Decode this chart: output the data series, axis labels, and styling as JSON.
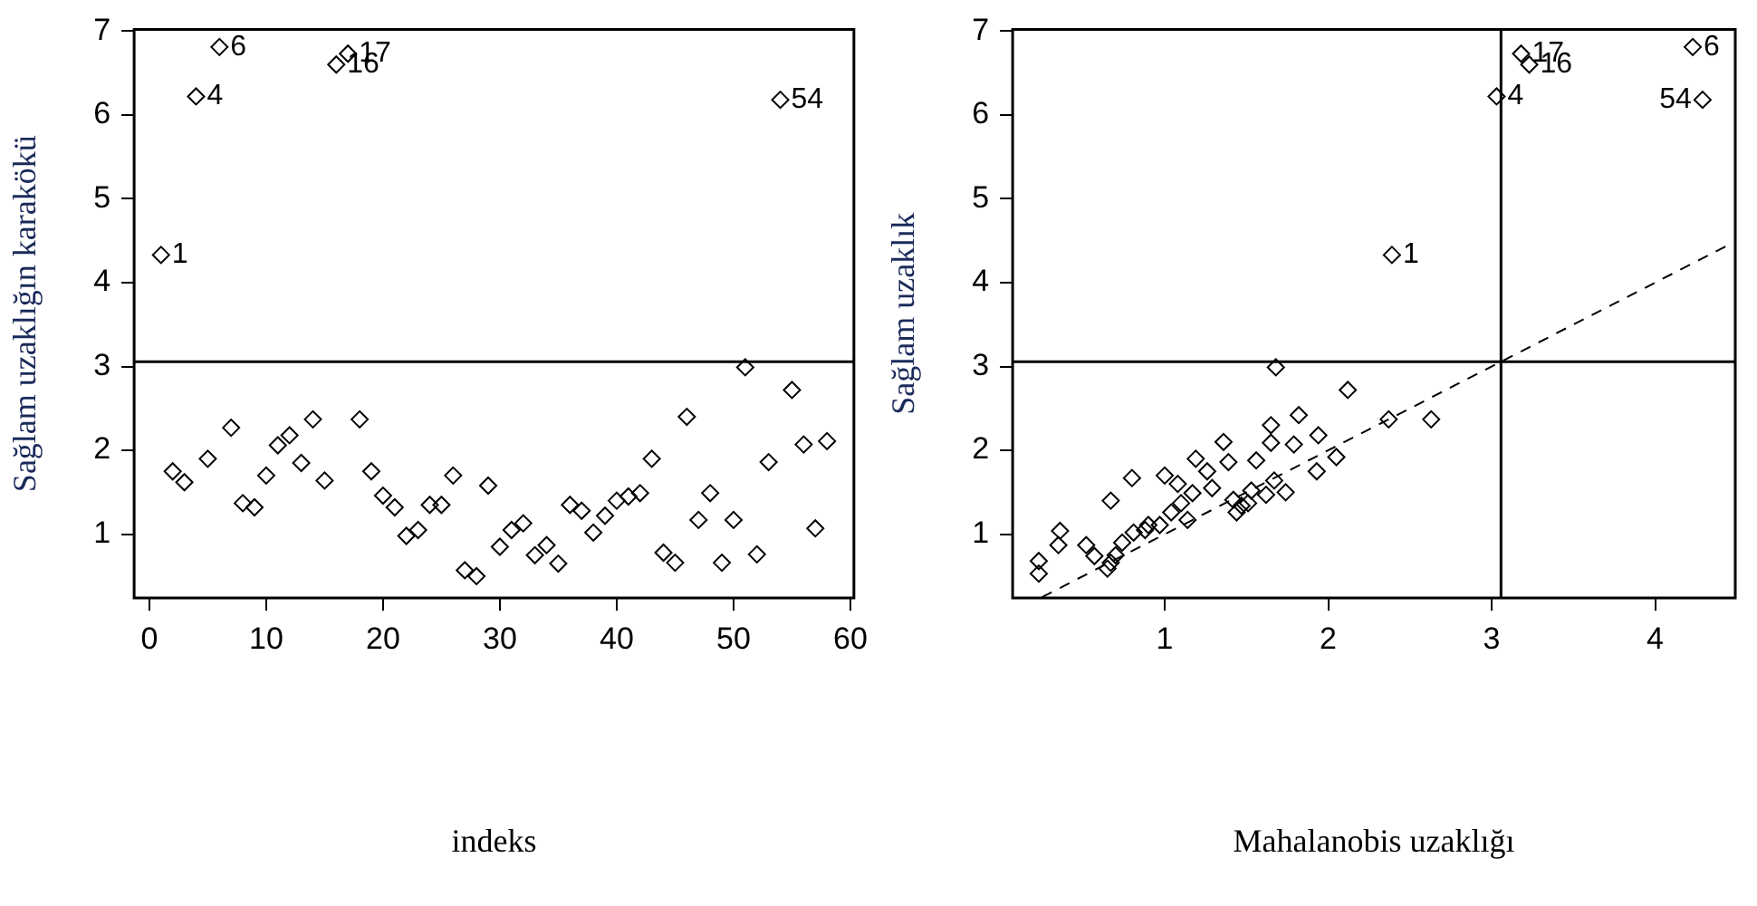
{
  "chart_data": [
    {
      "type": "scatter",
      "xlabel": "indeks",
      "ylabel": "Sağlam uzaklığın karakökü",
      "marker": "diamond",
      "x": [
        1,
        2,
        3,
        4,
        5,
        6,
        7,
        8,
        9,
        10,
        11,
        12,
        13,
        14,
        15,
        16,
        17,
        18,
        19,
        20,
        21,
        22,
        23,
        24,
        25,
        26,
        27,
        28,
        29,
        30,
        31,
        32,
        33,
        34,
        35,
        36,
        37,
        38,
        39,
        40,
        41,
        42,
        43,
        44,
        45,
        46,
        47,
        48,
        49,
        50,
        51,
        52,
        53,
        54,
        55,
        56,
        57,
        58
      ],
      "series": [
        {
          "color": "#000000",
          "values": [
            4.33,
            1.75,
            1.62,
            6.22,
            1.9,
            6.81,
            2.27,
            1.37,
            1.32,
            1.7,
            2.06,
            2.18,
            1.85,
            2.37,
            1.64,
            6.6,
            6.73,
            2.37,
            1.75,
            1.46,
            1.32,
            0.98,
            1.05,
            1.35,
            1.35,
            1.7,
            0.57,
            0.5,
            1.58,
            0.85,
            1.05,
            1.13,
            0.75,
            0.87,
            0.65,
            1.35,
            1.28,
            1.02,
            1.22,
            1.4,
            1.45,
            1.49,
            1.9,
            0.78,
            0.66,
            2.4,
            1.17,
            1.49,
            0.66,
            1.17,
            2.99,
            0.76,
            1.86,
            6.18,
            2.72,
            2.07,
            1.07,
            2.11
          ]
        }
      ],
      "xlim": [
        -1.3,
        60.3
      ],
      "xticks": [
        0,
        10,
        20,
        30,
        40,
        50,
        60
      ],
      "ylim": [
        0.24,
        7.02
      ],
      "yticks": [
        1,
        2,
        3,
        4,
        5,
        6,
        7
      ],
      "ref_lines": [
        {
          "axis": "y",
          "value": 3.057
        }
      ],
      "annotations": [
        {
          "text": "1",
          "x": 1,
          "y": 4.33
        },
        {
          "text": "4",
          "x": 4,
          "y": 6.22
        },
        {
          "text": "6",
          "x": 6,
          "y": 6.81
        },
        {
          "text": "16",
          "x": 16,
          "y": 6.6
        },
        {
          "text": "17",
          "x": 17,
          "y": 6.73
        },
        {
          "text": "54",
          "x": 54,
          "y": 6.18
        }
      ]
    },
    {
      "type": "scatter",
      "xlabel": "Mahalanobis uzaklığı",
      "ylabel": "Sağlam uzaklık",
      "marker": "diamond",
      "series": [
        {
          "color": "#000000",
          "x": [
            3.03,
            2.39,
            3.23,
            3.18,
            4.23,
            4.29,
            1.68,
            2.12,
            2.63,
            2.37,
            1.82,
            1.65,
            1.94,
            1.79,
            1.65,
            2.05,
            1.93,
            1.56,
            1.36,
            1.39,
            1.26,
            1.19,
            1.08,
            1.0,
            0.8,
            0.67,
            1.74,
            1.67,
            1.62,
            1.53,
            1.47,
            1.44,
            1.51,
            1.42,
            1.14,
            1.04,
            0.97,
            0.88,
            0.81,
            0.74,
            0.7,
            0.65,
            0.67,
            0.57,
            0.52,
            0.36,
            0.35,
            0.23,
            0.23,
            1.1,
            1.17,
            1.29,
            0.9
          ],
          "values": [
            6.22,
            4.33,
            6.6,
            6.73,
            6.81,
            6.18,
            2.99,
            2.72,
            2.37,
            2.37,
            2.42,
            2.3,
            2.18,
            2.07,
            2.09,
            1.92,
            1.75,
            1.88,
            2.1,
            1.86,
            1.75,
            1.9,
            1.6,
            1.7,
            1.67,
            1.4,
            1.5,
            1.64,
            1.47,
            1.52,
            1.34,
            1.26,
            1.37,
            1.41,
            1.17,
            1.26,
            1.11,
            1.05,
            1.02,
            0.9,
            0.75,
            0.59,
            0.66,
            0.74,
            0.87,
            1.04,
            0.87,
            0.68,
            0.53,
            1.37,
            1.49,
            1.55,
            1.11
          ]
        },
        {
          "type": "line",
          "color": "#000000",
          "line_style": "dashed",
          "marker": "none",
          "x": [
            0.25,
            4.48
          ],
          "values": [
            0.25,
            4.48
          ]
        }
      ],
      "xlim": [
        0.07,
        4.49
      ],
      "xticks": [
        1,
        2,
        3,
        4
      ],
      "ylim": [
        0.24,
        7.02
      ],
      "yticks": [
        1,
        2,
        3,
        4,
        5,
        6,
        7
      ],
      "ref_lines": [
        {
          "axis": "x",
          "value": 3.057
        },
        {
          "axis": "y",
          "value": 3.057
        }
      ],
      "annotations": [
        {
          "text": "4",
          "x": 3.03,
          "y": 6.22
        },
        {
          "text": "1",
          "x": 2.39,
          "y": 4.33
        },
        {
          "text": "16",
          "x": 3.23,
          "y": 6.6
        },
        {
          "text": "17",
          "x": 3.18,
          "y": 6.73
        },
        {
          "text": "6",
          "x": 4.23,
          "y": 6.81
        },
        {
          "text": "54",
          "x": 4.29,
          "y": 6.18
        }
      ]
    }
  ]
}
